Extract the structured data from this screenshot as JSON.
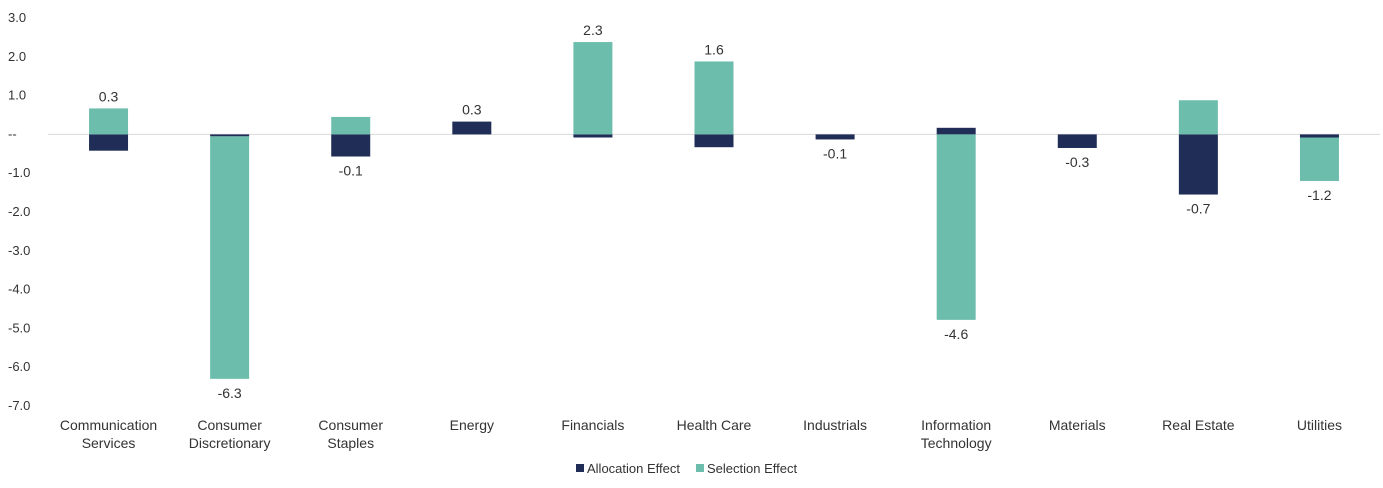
{
  "chart_data": {
    "type": "bar",
    "stacked": true,
    "title": "",
    "xlabel": "",
    "ylabel": "",
    "ylim": [
      -7.0,
      3.0
    ],
    "yticks": [
      3.0,
      2.0,
      1.0,
      0,
      -1.0,
      -2.0,
      -3.0,
      -4.0,
      -5.0,
      -6.0,
      -7.0
    ],
    "ytick_labels": [
      "3.0",
      "2.0",
      "1.0",
      "--",
      "-1.0",
      "-2.0",
      "-3.0",
      "-4.0",
      "-5.0",
      "-6.0",
      "-7.0"
    ],
    "grid": false,
    "legend": "bottom",
    "categories": [
      [
        "Communication",
        "Services"
      ],
      [
        "Consumer",
        "Discretionary"
      ],
      [
        "Consumer",
        "Staples"
      ],
      [
        "Energy"
      ],
      [
        "Financials"
      ],
      [
        "Health Care"
      ],
      [
        "Industrials"
      ],
      [
        "Information",
        "Technology"
      ],
      [
        "Materials"
      ],
      [
        "Real Estate"
      ],
      [
        "Utilities"
      ]
    ],
    "series": [
      {
        "name": "Allocation Effect",
        "color": "#1f2d57",
        "values": [
          -0.42,
          -0.05,
          -0.57,
          0.33,
          -0.08,
          -0.33,
          -0.13,
          0.17,
          -0.35,
          -1.55,
          -0.08
        ]
      },
      {
        "name": "Selection Effect",
        "color": "#6dbdad",
        "values": [
          0.67,
          -6.25,
          0.45,
          0.0,
          2.38,
          1.88,
          0.0,
          -4.78,
          0.0,
          0.88,
          -1.12
        ]
      }
    ],
    "total_labels": [
      "0.3",
      "-6.3",
      "-0.1",
      "0.3",
      "2.3",
      "1.6",
      "-0.1",
      "-4.6",
      "-0.3",
      "-0.7",
      "-1.2"
    ]
  }
}
